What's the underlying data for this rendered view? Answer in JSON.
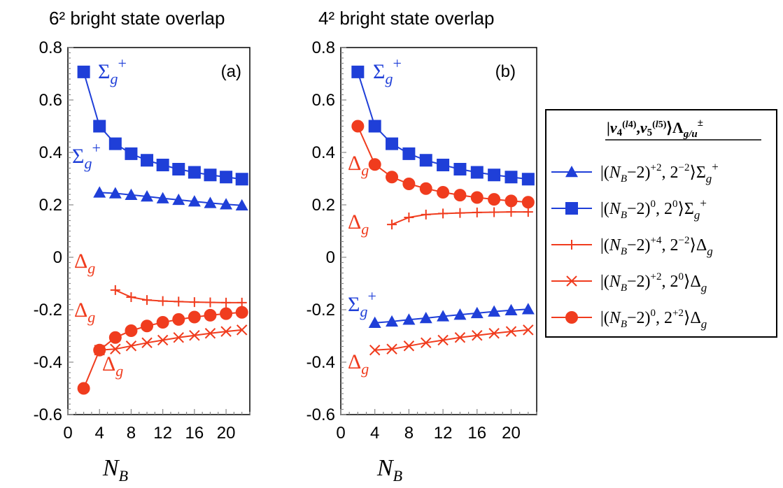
{
  "chart_data": [
    {
      "type": "line",
      "title": "6² bright state overlap",
      "panel_label": "(a)",
      "xlabel": "N_B",
      "ylim": [
        -0.6,
        0.8
      ],
      "xlim": [
        0,
        23
      ],
      "xticks": [
        "0",
        "4",
        "8",
        "12",
        "16",
        "20"
      ],
      "yticks": [
        "0.8",
        "0.6",
        "0.4",
        "0.2",
        "0",
        "-0.2",
        "-0.4",
        "-0.6"
      ],
      "annotations": [
        "Σg+",
        "Σg+",
        "Δg",
        "Δg",
        "Δg"
      ],
      "series": [
        {
          "name": "|(N_B−2)^+2, 2^−2⟩Σg+",
          "color": "#1f3fd8",
          "marker": "triangle",
          "x": [
            4,
            6,
            8,
            10,
            12,
            14,
            16,
            18,
            20,
            22
          ],
          "y": [
            0.247,
            0.244,
            0.238,
            0.232,
            0.225,
            0.219,
            0.213,
            0.207,
            0.202,
            0.198
          ]
        },
        {
          "name": "|(N_B−2)^0, 2^0⟩Σg+",
          "color": "#1f3fd8",
          "marker": "square",
          "x": [
            2,
            4,
            6,
            8,
            10,
            12,
            14,
            16,
            18,
            20,
            22
          ],
          "y": [
            0.707,
            0.5,
            0.433,
            0.395,
            0.37,
            0.352,
            0.336,
            0.324,
            0.314,
            0.306,
            0.298
          ]
        },
        {
          "name": "|(N_B−2)^+4, 2^−2⟩Δg",
          "color": "#f03c1e",
          "marker": "plus",
          "x": [
            6,
            8,
            10,
            12,
            14,
            16,
            18,
            20,
            22
          ],
          "y": [
            -0.125,
            -0.152,
            -0.163,
            -0.167,
            -0.169,
            -0.171,
            -0.172,
            -0.173,
            -0.173
          ]
        },
        {
          "name": "|(N_B−2)^+2, 2^0⟩Δg",
          "color": "#f03c1e",
          "marker": "cross",
          "x": [
            4,
            6,
            8,
            10,
            12,
            14,
            16,
            18,
            20,
            22
          ],
          "y": [
            -0.354,
            -0.35,
            -0.338,
            -0.326,
            -0.316,
            -0.306,
            -0.298,
            -0.29,
            -0.283,
            -0.277
          ]
        },
        {
          "name": "|(N_B−2)^0, 2^+2⟩Δg",
          "color": "#f03c1e",
          "marker": "circle",
          "x": [
            2,
            4,
            6,
            8,
            10,
            12,
            14,
            16,
            18,
            20,
            22
          ],
          "y": [
            -0.5,
            -0.354,
            -0.306,
            -0.28,
            -0.262,
            -0.248,
            -0.237,
            -0.228,
            -0.221,
            -0.215,
            -0.21
          ]
        }
      ]
    },
    {
      "type": "line",
      "title": "4² bright state overlap",
      "panel_label": "(b)",
      "xlabel": "N_B",
      "ylim": [
        -0.6,
        0.8
      ],
      "xlim": [
        0,
        23
      ],
      "xticks": [
        "0",
        "4",
        "8",
        "12",
        "16",
        "20"
      ],
      "yticks": [
        "0.8",
        "0.6",
        "0.4",
        "0.2",
        "0",
        "-0.2",
        "-0.4",
        "-0.6"
      ],
      "annotations": [
        "Σg+",
        "Δg",
        "Δg",
        "Σg+",
        "Δg"
      ],
      "series": [
        {
          "name": "|(N_B−2)^+2, 2^−2⟩Σg+",
          "color": "#1f3fd8",
          "marker": "triangle",
          "x": [
            4,
            6,
            8,
            10,
            12,
            14,
            16,
            18,
            20,
            22
          ],
          "y": [
            -0.25,
            -0.245,
            -0.238,
            -0.232,
            -0.225,
            -0.219,
            -0.213,
            -0.207,
            -0.202,
            -0.198
          ]
        },
        {
          "name": "|(N_B−2)^0, 2^0⟩Σg+",
          "color": "#1f3fd8",
          "marker": "square",
          "x": [
            2,
            4,
            6,
            8,
            10,
            12,
            14,
            16,
            18,
            20,
            22
          ],
          "y": [
            0.707,
            0.5,
            0.433,
            0.395,
            0.37,
            0.352,
            0.336,
            0.324,
            0.314,
            0.306,
            0.298
          ]
        },
        {
          "name": "|(N_B−2)^+4, 2^−2⟩Δg",
          "color": "#f03c1e",
          "marker": "plus",
          "x": [
            6,
            8,
            10,
            12,
            14,
            16,
            18,
            20,
            22
          ],
          "y": [
            0.125,
            0.152,
            0.163,
            0.167,
            0.169,
            0.171,
            0.172,
            0.173,
            0.173
          ]
        },
        {
          "name": "|(N_B−2)^+2, 2^0⟩Δg",
          "color": "#f03c1e",
          "marker": "cross",
          "x": [
            4,
            6,
            8,
            10,
            12,
            14,
            16,
            18,
            20,
            22
          ],
          "y": [
            -0.354,
            -0.35,
            -0.338,
            -0.326,
            -0.316,
            -0.306,
            -0.298,
            -0.29,
            -0.283,
            -0.277
          ]
        },
        {
          "name": "|(N_B−2)^0, 2^+2⟩Δg",
          "color": "#f03c1e",
          "marker": "circle",
          "x": [
            2,
            4,
            6,
            8,
            10,
            12,
            14,
            16,
            18,
            20,
            22
          ],
          "y": [
            0.5,
            0.354,
            0.306,
            0.28,
            0.262,
            0.248,
            0.237,
            0.228,
            0.221,
            0.215,
            0.21
          ]
        }
      ]
    }
  ],
  "legend": {
    "title": "|v4(l4),v5(l5)⟩Λg/u±",
    "placement": "right",
    "entries": [
      {
        "label": "|(N_B−2)^+2, 2^−2⟩Σg+",
        "marker": "triangle",
        "color": "#1f3fd8"
      },
      {
        "label": "|(N_B−2)^0, 2^0⟩Σg+",
        "marker": "square",
        "color": "#1f3fd8"
      },
      {
        "label": "|(N_B−2)^+4, 2^−2⟩Δg",
        "marker": "plus",
        "color": "#f03c1e"
      },
      {
        "label": "|(N_B−2)^+2, 2^0⟩Δg",
        "marker": "cross",
        "color": "#f03c1e"
      },
      {
        "label": "|(N_B−2)^0, 2^+2⟩Δg",
        "marker": "circle",
        "color": "#f03c1e"
      }
    ]
  },
  "colors": {
    "blue": "#1f3fd8",
    "red": "#f03c1e"
  }
}
